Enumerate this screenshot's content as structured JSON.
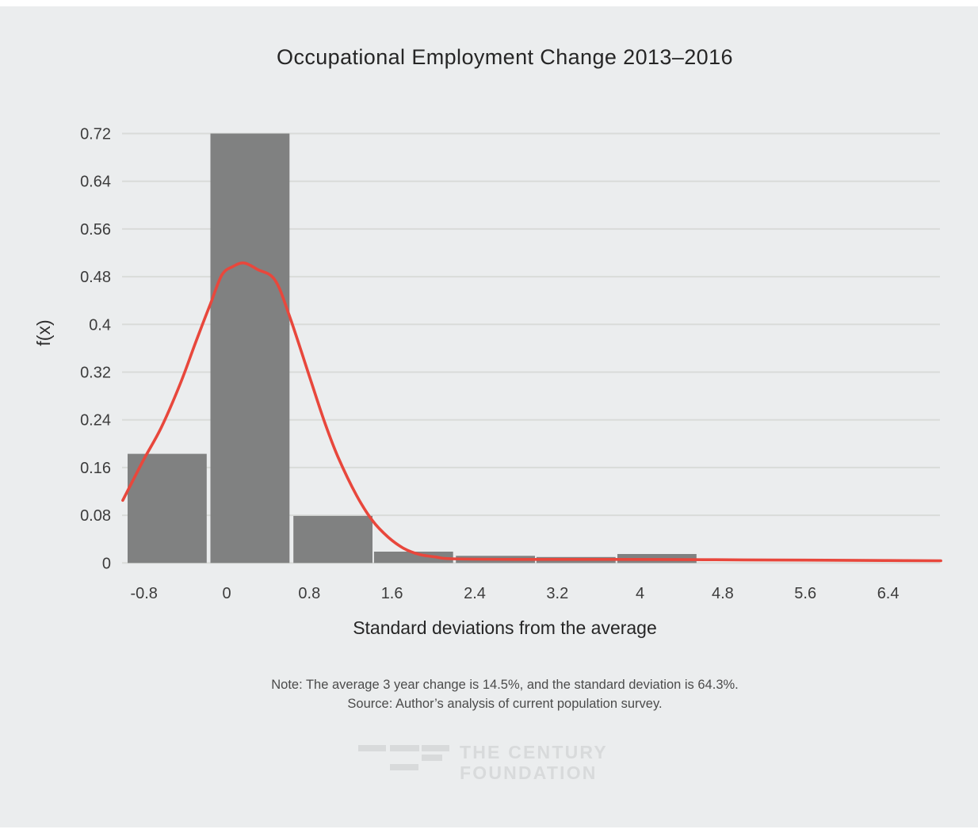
{
  "page": {
    "background": "#ffffff",
    "canvas_background": "#ebedee",
    "grid_color": "#d9dbd9",
    "text_color": "#262626",
    "tick_color": "#3c3c3c"
  },
  "chart_data": {
    "type": "bar",
    "title": "Occupational Employment Change 2013–2016",
    "xlabel": "Standard deviations from the average",
    "ylabel": "f(x)",
    "grid": true,
    "legend": "none",
    "xlim": [
      -1.05,
      6.95
    ],
    "ylim": [
      0,
      0.72
    ],
    "x_ticks": [
      -0.8,
      0,
      0.8,
      1.6,
      2.4,
      3.2,
      4,
      4.8,
      5.6,
      6.4
    ],
    "x_tick_labels": [
      "-0.8",
      "0",
      "0.8",
      "1.6",
      "2.4",
      "3.2",
      "4",
      "4.8",
      "5.6",
      "6.4"
    ],
    "y_ticks": [
      0,
      0.08,
      0.16,
      0.24,
      0.32,
      0.4,
      0.48,
      0.56,
      0.64,
      0.72
    ],
    "y_tick_labels": [
      "0",
      "0.08",
      "0.16",
      "0.24",
      "0.32",
      "0.4",
      "0.48",
      "0.56",
      "0.64",
      "0.72"
    ],
    "bars": {
      "name": "occupational-employment-change-density-histogram",
      "color": "#808181",
      "bin_width": 0.765,
      "centers": [
        -0.576,
        0.225,
        1.028,
        1.808,
        2.6,
        3.38,
        4.163
      ],
      "values": [
        0.183,
        0.72,
        0.079,
        0.019,
        0.012,
        0.01,
        0.015
      ]
    },
    "curve": {
      "name": "density-curve-overlay",
      "color": "#e8473c",
      "peak": {
        "x": 0.17,
        "f": 0.503
      },
      "points": [
        [
          -1.005,
          0.105
        ],
        [
          -0.81,
          0.171
        ],
        [
          -0.636,
          0.226
        ],
        [
          -0.45,
          0.3
        ],
        [
          -0.3,
          0.37
        ],
        [
          -0.156,
          0.435
        ],
        [
          -0.046,
          0.483
        ],
        [
          0.06,
          0.497
        ],
        [
          0.169,
          0.503
        ],
        [
          0.3,
          0.492
        ],
        [
          0.465,
          0.475
        ],
        [
          0.606,
          0.415
        ],
        [
          0.821,
          0.302
        ],
        [
          0.95,
          0.235
        ],
        [
          1.079,
          0.177
        ],
        [
          1.258,
          0.113
        ],
        [
          1.411,
          0.071
        ],
        [
          1.564,
          0.043
        ],
        [
          1.718,
          0.024
        ],
        [
          1.871,
          0.014
        ],
        [
          2.025,
          0.01
        ],
        [
          2.178,
          0.007
        ],
        [
          2.792,
          0.006
        ],
        [
          3.5,
          0.006
        ],
        [
          4.2,
          0.0058
        ],
        [
          5.0,
          0.0052
        ],
        [
          5.8,
          0.0046
        ],
        [
          6.4,
          0.0041
        ],
        [
          6.91,
          0.0037
        ]
      ]
    },
    "annotations": {
      "note_line1": "Note: The average 3 year change is 14.5%, and the standard deviation is 64.3%.",
      "note_line2": "Source: Author’s analysis of current population survey."
    }
  },
  "footer": {
    "logo_line1": "THE CENTURY",
    "logo_line2": "FOUNDATION",
    "logo_color": "#d8dadb"
  }
}
